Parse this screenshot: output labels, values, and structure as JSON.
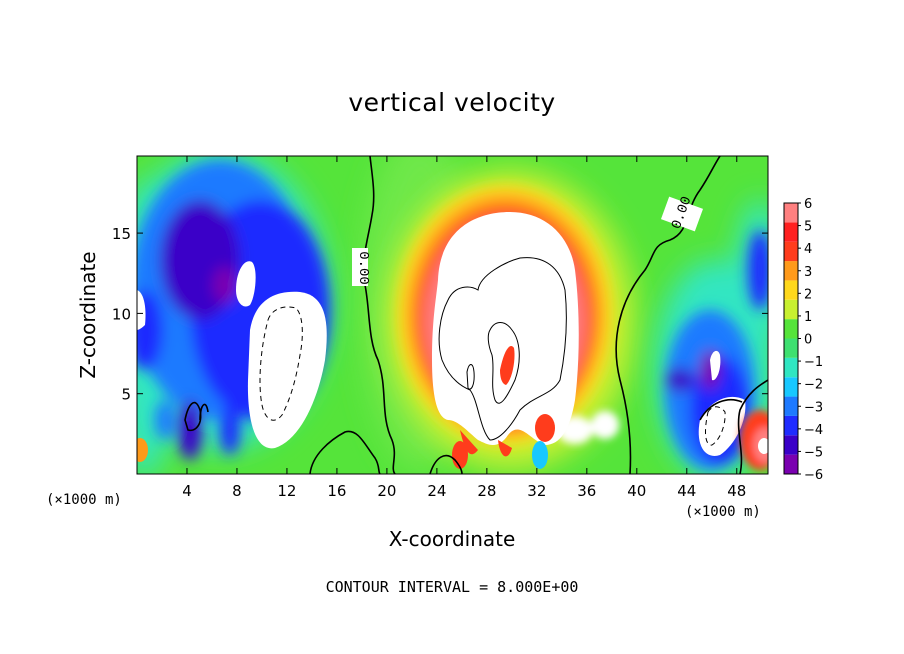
{
  "chart_data": {
    "type": "heatmap",
    "title": "vertical velocity",
    "xlabel": "X-coordinate",
    "ylabel": "Z-coordinate",
    "x_unit": "(×1000 m)",
    "z_unit": "(×1000 m)",
    "xlim": [
      0,
      50.5
    ],
    "ylim": [
      0,
      19.8
    ],
    "x_ticks": [
      4,
      8,
      12,
      16,
      20,
      24,
      28,
      32,
      36,
      40,
      44,
      48
    ],
    "y_ticks": [
      5,
      10,
      15
    ],
    "colorbar": {
      "min": -6,
      "max": 6,
      "labels": [
        "6",
        "5",
        "4",
        "3",
        "2",
        "1",
        "0",
        "−1",
        "−2",
        "−3",
        "−4",
        "−5",
        "−6"
      ],
      "colors": [
        "#7a00b0",
        "#3a00c8",
        "#1f2cff",
        "#1e7aff",
        "#18c8ff",
        "#30e6c2",
        "#3ee070",
        "#55e43a",
        "#c8f030",
        "#ffd81c",
        "#ff9a1a",
        "#ff3c1c",
        "#ff2020",
        "#ff8080"
      ]
    },
    "contour_labels": [
      "0.00",
      "0.00"
    ],
    "contour_interval": "CONTOUR INTERVAL = 8.000E+00",
    "features": [
      {
        "kind": "updraft",
        "x_center": 28.5,
        "z_top": 17,
        "peak_sign": "+"
      },
      {
        "kind": "downdraft",
        "x_center": 8,
        "z_top": 16,
        "peak_sign": "-"
      },
      {
        "kind": "downdraft",
        "x_center": 46,
        "z_top": 12,
        "peak_sign": "-"
      }
    ]
  }
}
